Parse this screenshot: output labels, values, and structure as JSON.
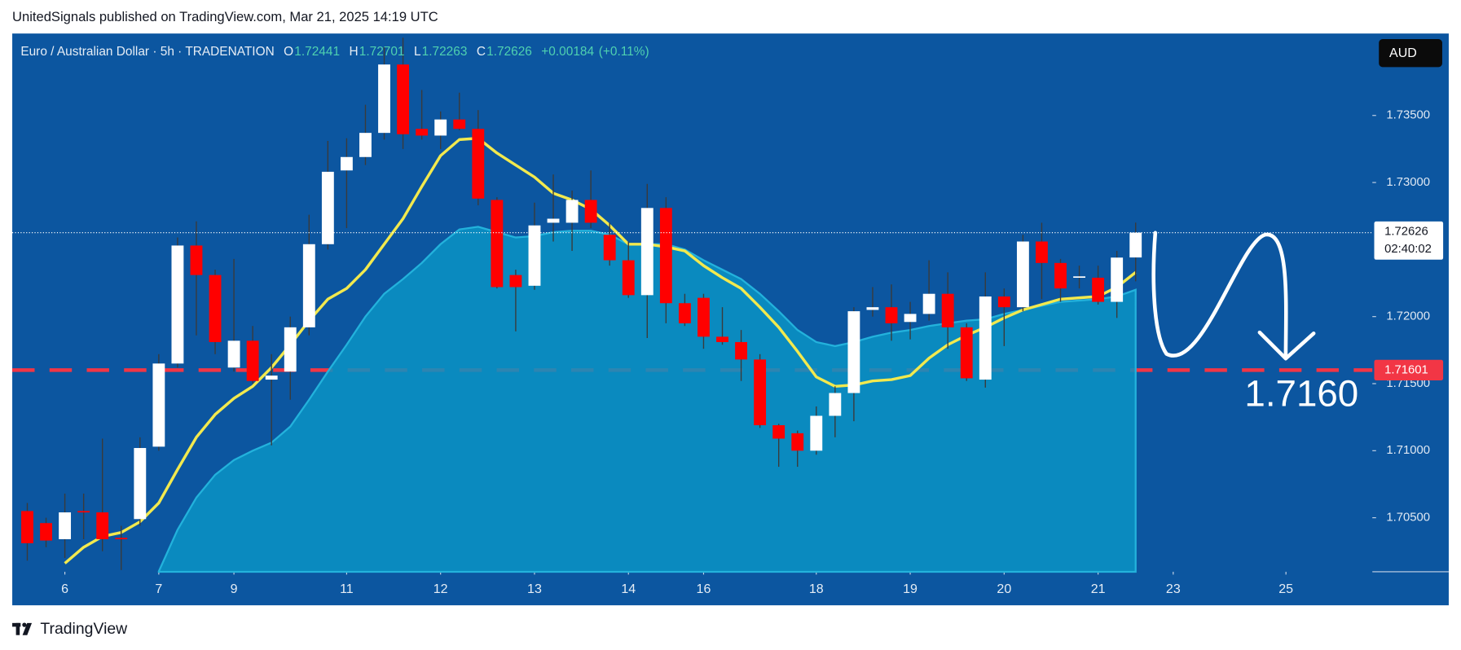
{
  "header": "UnitedSignals published on TradingView.com, Mar 21, 2025 14:19 UTC",
  "footer": "TradingView",
  "chart_data": {
    "type": "candlestick",
    "title": "Euro / Australian Dollar · 5h · TRADENATION",
    "ohlc_keys": [
      "O",
      "H",
      "L",
      "C"
    ],
    "change_label": "+0.00184",
    "change_pct_label": "(+0.11%)",
    "currency": "AUD",
    "countdown": "02:40:02",
    "level": 1.71601,
    "annotation": "1.7160",
    "up_color": "#ffffff",
    "down_color": "#ff0000",
    "candles": [
      [
        1.7055,
        1.7061,
        1.7018,
        1.7031
      ],
      [
        1.7046,
        1.705,
        1.7028,
        1.7033
      ],
      [
        1.7034,
        1.7068,
        1.702,
        1.7054
      ],
      [
        1.7055,
        1.7068,
        1.7034,
        1.7054
      ],
      [
        1.7054,
        1.7109,
        1.7025,
        1.7034
      ],
      [
        1.7035,
        1.7044,
        1.7011,
        1.7034
      ],
      [
        1.7049,
        1.711,
        1.7044,
        1.7102
      ],
      [
        1.7103,
        1.7172,
        1.71,
        1.7165
      ],
      [
        1.7165,
        1.7259,
        1.7162,
        1.7253
      ],
      [
        1.7253,
        1.7271,
        1.7186,
        1.7231
      ],
      [
        1.7231,
        1.7235,
        1.7172,
        1.7181
      ],
      [
        1.7162,
        1.7243,
        1.7159,
        1.7182
      ],
      [
        1.7182,
        1.7193,
        1.715,
        1.7152
      ],
      [
        1.7153,
        1.7172,
        1.7104,
        1.7156
      ],
      [
        1.7159,
        1.72,
        1.7138,
        1.7192
      ],
      [
        1.7192,
        1.7276,
        1.7186,
        1.7254
      ],
      [
        1.7254,
        1.7331,
        1.725,
        1.7308
      ],
      [
        1.7309,
        1.7333,
        1.7266,
        1.7319
      ],
      [
        1.7319,
        1.7358,
        1.7313,
        1.7337
      ],
      [
        1.7337,
        1.7401,
        1.7332,
        1.7388
      ],
      [
        1.7388,
        1.7408,
        1.7325,
        1.7336
      ],
      [
        1.734,
        1.7369,
        1.7332,
        1.7335
      ],
      [
        1.7335,
        1.7353,
        1.7325,
        1.7347
      ],
      [
        1.7347,
        1.7367,
        1.7339,
        1.734
      ],
      [
        1.734,
        1.7354,
        1.7283,
        1.7288
      ],
      [
        1.7287,
        1.7289,
        1.7221,
        1.7222
      ],
      [
        1.7231,
        1.7235,
        1.7189,
        1.7222
      ],
      [
        1.7223,
        1.7285,
        1.722,
        1.7268
      ],
      [
        1.727,
        1.7306,
        1.7256,
        1.7273
      ],
      [
        1.727,
        1.7294,
        1.7249,
        1.7287
      ],
      [
        1.7287,
        1.7309,
        1.7266,
        1.727
      ],
      [
        1.7261,
        1.727,
        1.7238,
        1.7242
      ],
      [
        1.7242,
        1.7256,
        1.7214,
        1.7216
      ],
      [
        1.7216,
        1.7299,
        1.7184,
        1.7281
      ],
      [
        1.7281,
        1.7289,
        1.7195,
        1.721
      ],
      [
        1.721,
        1.7217,
        1.7193,
        1.7195
      ],
      [
        1.7214,
        1.7217,
        1.7176,
        1.7185
      ],
      [
        1.7185,
        1.7207,
        1.7179,
        1.7181
      ],
      [
        1.7181,
        1.719,
        1.7152,
        1.7168
      ],
      [
        1.7168,
        1.7172,
        1.7117,
        1.7119
      ],
      [
        1.7119,
        1.712,
        1.7088,
        1.7109
      ],
      [
        1.7113,
        1.7115,
        1.7088,
        1.71
      ],
      [
        1.71,
        1.7133,
        1.7097,
        1.7126
      ],
      [
        1.7126,
        1.7148,
        1.711,
        1.7143
      ],
      [
        1.7143,
        1.7207,
        1.7122,
        1.7204
      ],
      [
        1.7205,
        1.7222,
        1.72,
        1.7207
      ],
      [
        1.7207,
        1.7224,
        1.7182,
        1.7195
      ],
      [
        1.7196,
        1.7211,
        1.7183,
        1.7202
      ],
      [
        1.7202,
        1.7242,
        1.7197,
        1.7217
      ],
      [
        1.7217,
        1.7233,
        1.7176,
        1.7192
      ],
      [
        1.7192,
        1.7195,
        1.7152,
        1.7154
      ],
      [
        1.7153,
        1.7233,
        1.7147,
        1.7215
      ],
      [
        1.7215,
        1.7221,
        1.7178,
        1.7207
      ],
      [
        1.7207,
        1.7261,
        1.7204,
        1.7256
      ],
      [
        1.7256,
        1.727,
        1.7213,
        1.724
      ],
      [
        1.724,
        1.7243,
        1.7211,
        1.7221
      ],
      [
        1.7229,
        1.7238,
        1.7221,
        1.723
      ],
      [
        1.7229,
        1.7238,
        1.7209,
        1.7211
      ],
      [
        1.7211,
        1.7249,
        1.7199,
        1.7244
      ],
      [
        1.72441,
        1.72701,
        1.72263,
        1.72626
      ]
    ],
    "series": [
      {
        "kind": "area",
        "color": "#0a93c4",
        "values": [
          null,
          null,
          null,
          null,
          null,
          null,
          null,
          1.701,
          1.7041,
          1.7065,
          1.7082,
          1.7093,
          1.71,
          1.7106,
          1.7118,
          1.7138,
          1.7159,
          1.7179,
          1.72,
          1.7217,
          1.7228,
          1.724,
          1.7254,
          1.7265,
          1.7267,
          1.7263,
          1.7259,
          1.726,
          1.7263,
          1.7264,
          1.7264,
          1.7261,
          1.7254,
          1.7254,
          1.7254,
          1.725,
          1.7242,
          1.7235,
          1.7228,
          1.7217,
          1.7204,
          1.719,
          1.7181,
          1.7178,
          1.7181,
          1.7185,
          1.7188,
          1.719,
          1.7193,
          1.7195,
          1.7197,
          1.7198,
          1.7202,
          1.7205,
          1.7208,
          1.7211,
          1.7212,
          1.7213,
          1.7215,
          1.722
        ]
      },
      {
        "kind": "line",
        "color": "#f2e94e",
        "values": [
          null,
          null,
          1.7016,
          1.7028,
          1.7036,
          1.7039,
          1.7047,
          1.7061,
          1.7086,
          1.711,
          1.7127,
          1.7139,
          1.7148,
          1.7162,
          1.7179,
          1.7197,
          1.7213,
          1.7221,
          1.7235,
          1.7254,
          1.7273,
          1.7297,
          1.732,
          1.7332,
          1.7333,
          1.7322,
          1.7313,
          1.7304,
          1.7292,
          1.7287,
          1.728,
          1.7268,
          1.7254,
          1.7254,
          1.7252,
          1.7249,
          1.7238,
          1.7229,
          1.7221,
          1.7207,
          1.7192,
          1.7174,
          1.7155,
          1.7148,
          1.7149,
          1.7152,
          1.7153,
          1.7156,
          1.7169,
          1.7179,
          1.7186,
          1.7192,
          1.7199,
          1.7205,
          1.7209,
          1.7213,
          1.7214,
          1.7215,
          1.7222,
          1.7233
        ]
      }
    ],
    "xlim": [
      -0.8,
      71.6
    ],
    "xticks": [
      {
        "value": 2,
        "label": "6"
      },
      {
        "value": 7,
        "label": "7"
      },
      {
        "value": 11,
        "label": "9"
      },
      {
        "value": 17,
        "label": "11"
      },
      {
        "value": 22,
        "label": "12"
      },
      {
        "value": 27,
        "label": "13"
      },
      {
        "value": 32,
        "label": "14"
      },
      {
        "value": 36,
        "label": "16"
      },
      {
        "value": 42,
        "label": "18"
      },
      {
        "value": 47,
        "label": "19"
      },
      {
        "value": 52,
        "label": "20"
      },
      {
        "value": 57,
        "label": "21"
      },
      {
        "value": 61,
        "label": "23"
      },
      {
        "value": 67,
        "label": "25"
      }
    ],
    "ylim": [
      1.70097,
      1.74111
    ],
    "yticks": [
      {
        "value": 1.705,
        "label": "1.70500"
      },
      {
        "value": 1.71,
        "label": "1.71000"
      },
      {
        "value": 1.715,
        "label": "1.71500"
      },
      {
        "value": 1.72,
        "label": "1.72000"
      },
      {
        "value": 1.73,
        "label": "1.73000"
      },
      {
        "value": 1.735,
        "label": "1.73500"
      }
    ],
    "grid": false
  }
}
